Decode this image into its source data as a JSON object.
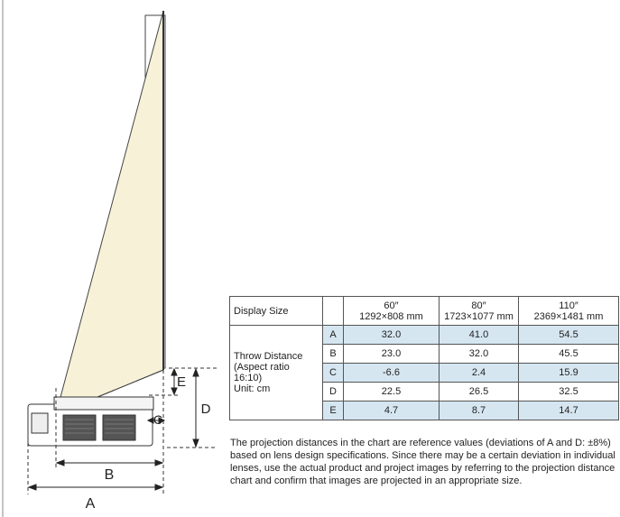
{
  "diagram": {
    "labels": {
      "A": "A",
      "B": "B",
      "C": "C",
      "D": "D",
      "E": "E"
    }
  },
  "table": {
    "header": {
      "display_size": "Display Size",
      "sizes": [
        {
          "diag": "60″",
          "res": "1292×808 mm"
        },
        {
          "diag": "80″",
          "res": "1723×1077 mm"
        },
        {
          "diag": "110″",
          "res": "2369×1481 mm"
        }
      ]
    },
    "row_label": [
      "Throw Distance",
      "(Aspect ratio",
      "16:10)",
      "Unit: cm"
    ],
    "rows": [
      {
        "letter": "A",
        "values": [
          "32.0",
          "41.0",
          "54.5"
        ]
      },
      {
        "letter": "B",
        "values": [
          "23.0",
          "32.0",
          "45.5"
        ]
      },
      {
        "letter": "C",
        "values": [
          "-6.6",
          "2.4",
          "15.9"
        ]
      },
      {
        "letter": "D",
        "values": [
          "22.5",
          "26.5",
          "32.5"
        ]
      },
      {
        "letter": "E",
        "values": [
          "4.7",
          "8.7",
          "14.7"
        ]
      }
    ],
    "shade_color": "#d5e6f1"
  },
  "note": "The projection distances in the chart are reference values (deviations of A and D: ±8%) based on lens design specifications. Since there may be a certain deviation in individual lenses, use the actual product and project images by referring to the projection distance chart and confirm that images are projected in an appropriate size."
}
